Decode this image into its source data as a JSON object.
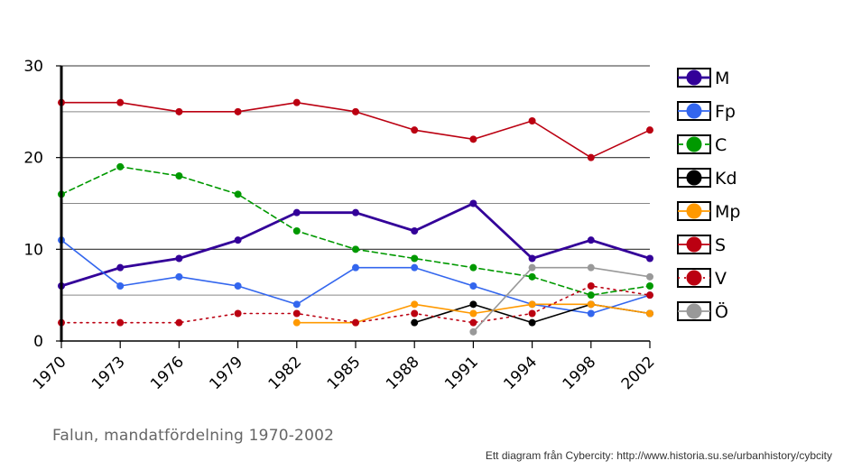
{
  "chart_data": {
    "type": "line",
    "title": "Falun, mandatfördelning 1970-2002",
    "xlabel": "",
    "ylabel": "",
    "ylim": [
      0,
      30
    ],
    "yticks": [
      0,
      10,
      20,
      30
    ],
    "grid": true,
    "legend_position": "right",
    "categories": [
      "1970",
      "1973",
      "1976",
      "1979",
      "1982",
      "1985",
      "1988",
      "1991",
      "1994",
      "1998",
      "2002"
    ],
    "series": [
      {
        "name": "M",
        "color": "#330099",
        "dash": "solid",
        "width": "thick",
        "values": [
          6,
          8,
          9,
          11,
          14,
          14,
          12,
          15,
          9,
          11,
          9
        ]
      },
      {
        "name": "Fp",
        "color": "#3366ee",
        "dash": "solid",
        "width": "normal",
        "values": [
          11,
          6,
          7,
          6,
          4,
          8,
          8,
          6,
          4,
          3,
          5
        ]
      },
      {
        "name": "C",
        "color": "#009900",
        "dash": "dashed",
        "width": "normal",
        "values": [
          16,
          19,
          18,
          16,
          12,
          10,
          9,
          8,
          7,
          5,
          6
        ]
      },
      {
        "name": "Kd",
        "color": "#000000",
        "dash": "solid",
        "width": "normal",
        "values": [
          null,
          null,
          null,
          null,
          null,
          null,
          2,
          4,
          2,
          4,
          3
        ]
      },
      {
        "name": "Mp",
        "color": "#ff9900",
        "dash": "solid",
        "width": "normal",
        "values": [
          null,
          null,
          null,
          null,
          2,
          2,
          4,
          3,
          4,
          4,
          3
        ]
      },
      {
        "name": "S",
        "color": "#bb0011",
        "dash": "solid",
        "width": "normal",
        "values": [
          26,
          26,
          25,
          25,
          26,
          25,
          23,
          22,
          24,
          20,
          23
        ]
      },
      {
        "name": "V",
        "color": "#bb0011",
        "dash": "dotted",
        "width": "normal",
        "values": [
          2,
          2,
          2,
          3,
          3,
          2,
          3,
          2,
          3,
          6,
          5
        ]
      },
      {
        "name": "Ö",
        "color": "#999999",
        "dash": "solid",
        "width": "normal",
        "values": [
          null,
          null,
          null,
          null,
          null,
          null,
          null,
          1,
          8,
          8,
          7
        ]
      }
    ]
  },
  "footer": {
    "caption": "Falun, mandatfördelning 1970-2002",
    "credit": "Ett diagram från Cybercity: http://www.historia.su.se/urbanhistory/cybcity"
  }
}
